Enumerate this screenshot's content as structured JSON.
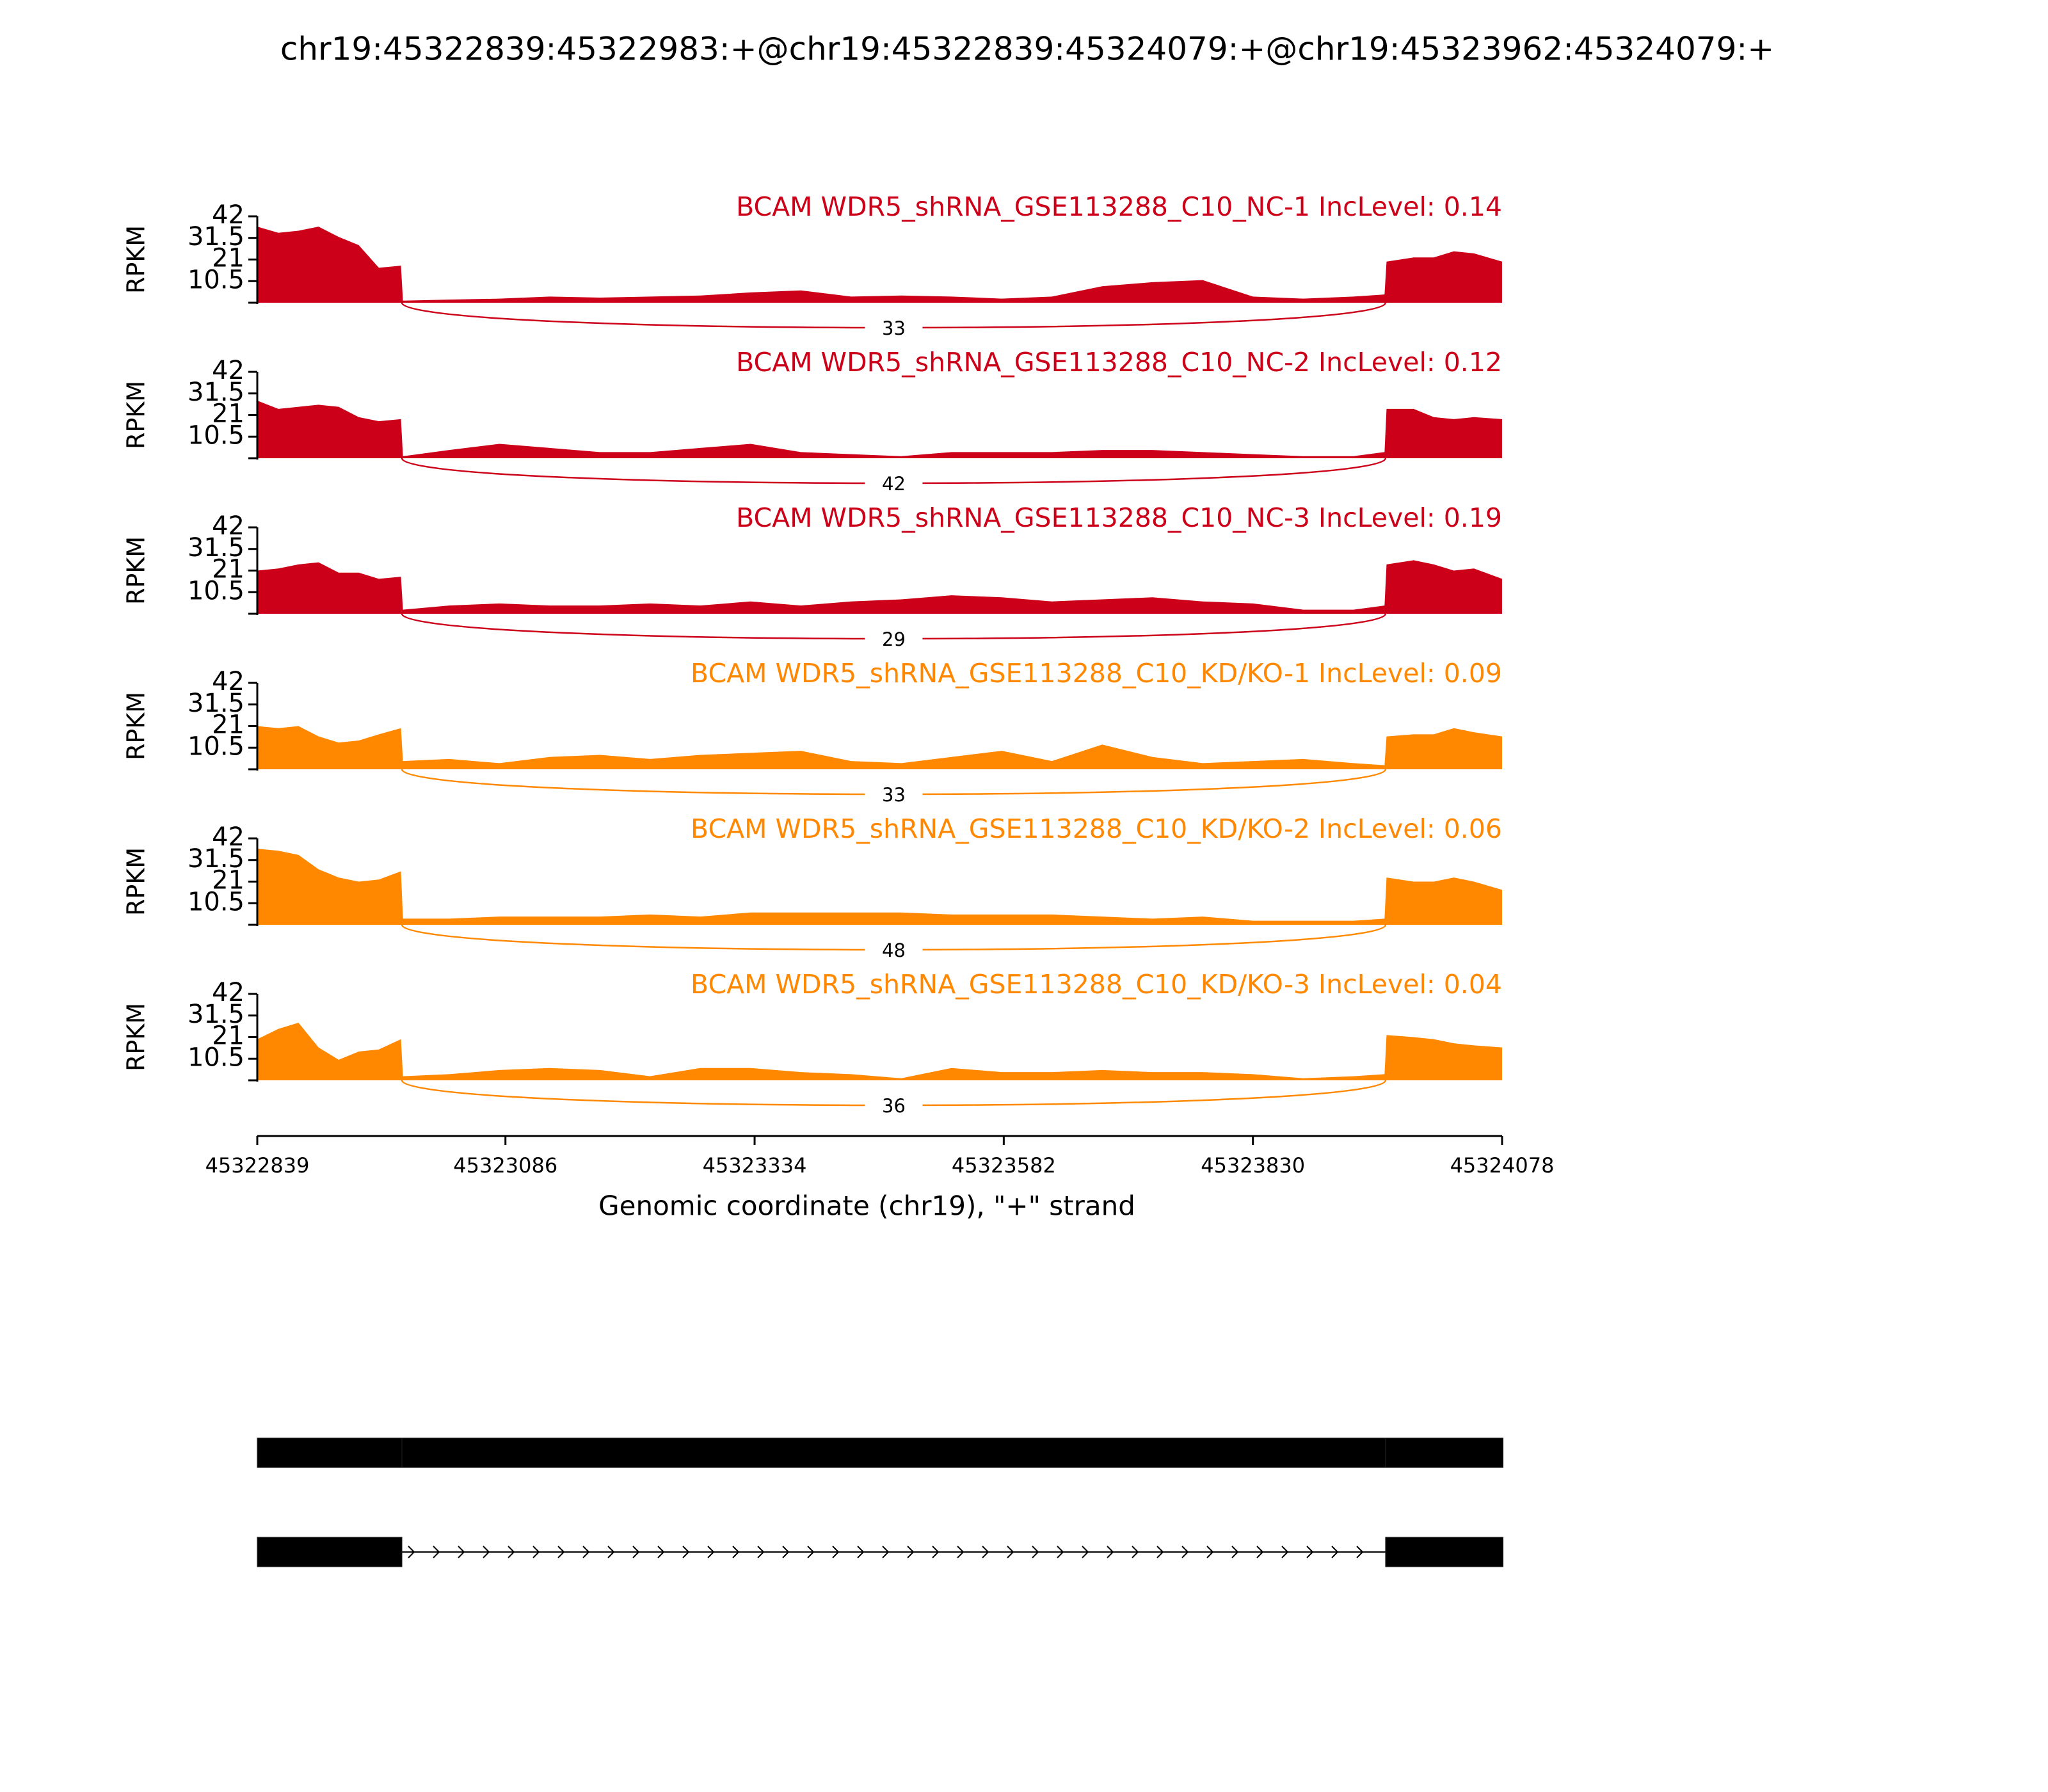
{
  "chart_data": {
    "type": "sashimi",
    "title": "chr19:45322839:45322983:+@chr19:45322839:45324079:+@chr19:45323962:45324079:+",
    "xlabel": "Genomic coordinate (chr19), \"+\" strand",
    "xlim": [
      45322839,
      45324078
    ],
    "xticks": [
      45322839,
      45323086,
      45323334,
      45323582,
      45323830,
      45324078
    ],
    "x": [
      45322839,
      45322860,
      45322880,
      45322900,
      45322920,
      45322940,
      45322960,
      45322982,
      45322984,
      45323030,
      45323080,
      45323130,
      45323180,
      45323230,
      45323280,
      45323330,
      45323380,
      45323430,
      45323480,
      45323530,
      45323580,
      45323630,
      45323680,
      45323730,
      45323780,
      45323830,
      45323880,
      45323930,
      45323961,
      45323963,
      45323990,
      45324010,
      45324030,
      45324050,
      45324078
    ],
    "tracks": [
      {
        "name": "BCAM WDR5_shRNA_GSE113288_C10_NC-1 IncLevel: 0.14",
        "color": "#cc0018",
        "ylabel": "RPKM",
        "ylim": [
          0,
          42
        ],
        "yticks": [
          10.5,
          21,
          31.5,
          42
        ],
        "values": [
          37,
          34,
          35,
          37,
          32,
          28,
          17,
          18,
          1,
          1.5,
          2,
          3,
          2.5,
          3,
          3.5,
          5,
          6,
          3,
          3.5,
          3,
          2,
          3,
          8,
          10,
          11,
          3,
          2,
          3,
          4,
          20,
          22,
          22,
          25,
          24,
          20
        ],
        "junctions": [
          {
            "start": 45322983,
            "end": 45323962,
            "count": 33
          }
        ]
      },
      {
        "name": "BCAM WDR5_shRNA_GSE113288_C10_NC-2 IncLevel: 0.12",
        "color": "#cc0018",
        "ylabel": "RPKM",
        "ylim": [
          0,
          42
        ],
        "yticks": [
          10.5,
          21,
          31.5,
          42
        ],
        "values": [
          28,
          24,
          25,
          26,
          25,
          20,
          18,
          19,
          1,
          4,
          7,
          5,
          3,
          3,
          5,
          7,
          3,
          2,
          1,
          3,
          3,
          3,
          4,
          4,
          3,
          2,
          1,
          1,
          3,
          24,
          24,
          20,
          19,
          20,
          19
        ],
        "junctions": [
          {
            "start": 45322983,
            "end": 45323962,
            "count": 42
          }
        ]
      },
      {
        "name": "BCAM WDR5_shRNA_GSE113288_C10_NC-3 IncLevel: 0.19",
        "color": "#cc0018",
        "ylabel": "RPKM",
        "ylim": [
          0,
          42
        ],
        "yticks": [
          10.5,
          21,
          31.5,
          42
        ],
        "values": [
          21,
          22,
          24,
          25,
          20,
          20,
          17,
          18,
          2,
          4,
          5,
          4,
          4,
          5,
          4,
          6,
          4,
          6,
          7,
          9,
          8,
          6,
          7,
          8,
          6,
          5,
          2,
          2,
          4,
          24,
          26,
          24,
          21,
          22,
          17
        ],
        "junctions": [
          {
            "start": 45322983,
            "end": 45323962,
            "count": 29
          }
        ]
      },
      {
        "name": "BCAM WDR5_shRNA_GSE113288_C10_KD/KO-1 IncLevel: 0.09",
        "color": "#ff8800",
        "ylabel": "RPKM",
        "ylim": [
          0,
          42
        ],
        "yticks": [
          10.5,
          21,
          31.5,
          42
        ],
        "values": [
          21,
          20,
          21,
          16,
          13,
          14,
          17,
          20,
          4,
          5,
          3,
          6,
          7,
          5,
          7,
          8,
          9,
          4,
          3,
          6,
          9,
          4,
          12,
          6,
          3,
          4,
          5,
          3,
          2,
          16,
          17,
          17,
          20,
          18,
          16
        ],
        "junctions": [
          {
            "start": 45322983,
            "end": 45323962,
            "count": 33
          }
        ]
      },
      {
        "name": "BCAM WDR5_shRNA_GSE113288_C10_KD/KO-2 IncLevel: 0.06",
        "color": "#ff8800",
        "ylabel": "RPKM",
        "ylim": [
          0,
          42
        ],
        "yticks": [
          10.5,
          21,
          31.5,
          42
        ],
        "values": [
          37,
          36,
          34,
          27,
          23,
          21,
          22,
          26,
          3,
          3,
          4,
          4,
          4,
          5,
          4,
          6,
          6,
          6,
          6,
          5,
          5,
          5,
          4,
          3,
          4,
          2,
          2,
          2,
          3,
          23,
          21,
          21,
          23,
          21,
          17
        ],
        "junctions": [
          {
            "start": 45322983,
            "end": 45323962,
            "count": 48
          }
        ]
      },
      {
        "name": "BCAM WDR5_shRNA_GSE113288_C10_KD/KO-3 IncLevel: 0.04",
        "color": "#ff8800",
        "ylabel": "RPKM",
        "ylim": [
          0,
          42
        ],
        "yticks": [
          10.5,
          21,
          31.5,
          42
        ],
        "values": [
          20,
          25,
          28,
          16,
          10,
          14,
          15,
          20,
          2,
          3,
          5,
          6,
          5,
          2,
          6,
          6,
          4,
          3,
          1,
          6,
          4,
          4,
          5,
          4,
          4,
          3,
          1,
          2,
          3,
          22,
          21,
          20,
          18,
          17,
          16
        ],
        "junctions": [
          {
            "start": 45322983,
            "end": 45323962,
            "count": 36
          }
        ]
      }
    ],
    "transcripts": [
      {
        "color": "#000000",
        "exons": [
          [
            45322839,
            45322983
          ],
          [
            45322983,
            45323962
          ],
          [
            45323962,
            45324079
          ]
        ]
      },
      {
        "color": "#000000",
        "exons": [
          [
            45322839,
            45322983
          ],
          [
            45323962,
            45324079
          ]
        ]
      }
    ]
  }
}
